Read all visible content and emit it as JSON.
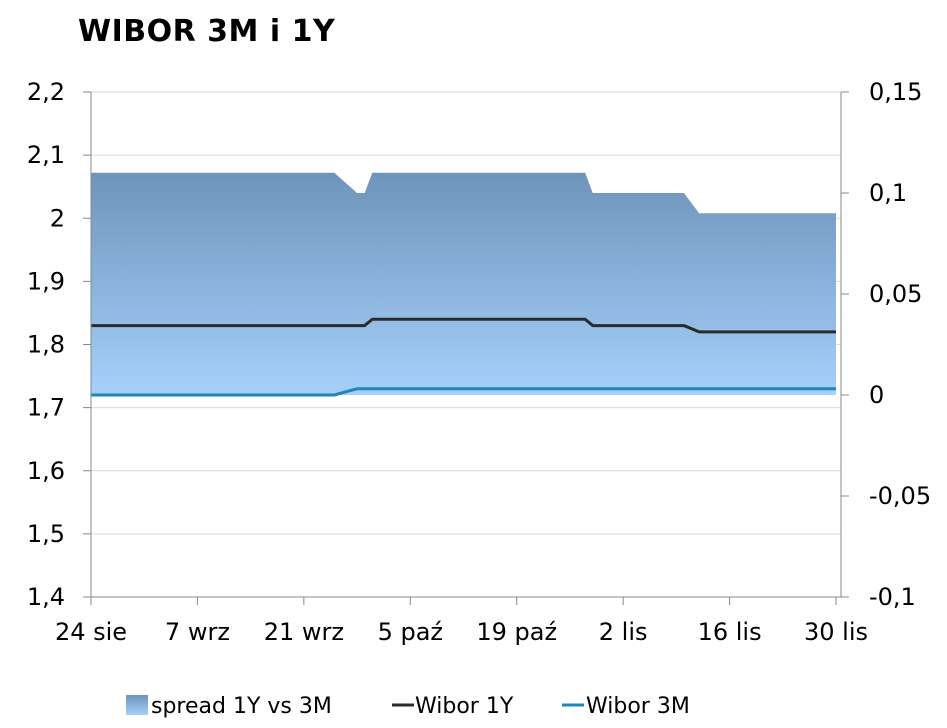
{
  "chart_data": {
    "type": "line",
    "title": "WIBOR 3M i 1Y",
    "xlabel": "",
    "ylabel": "",
    "ylim": [
      1.4,
      2.2
    ],
    "y2lim": [
      -0.1,
      0.15
    ],
    "y_ticks": [
      "2,2",
      "2,1",
      "2",
      "1,9",
      "1,8",
      "1,7",
      "1,6",
      "1,5",
      "1,4"
    ],
    "y2_ticks": [
      "0,15",
      "0,1",
      "0,05",
      "0",
      "-0,05",
      "-0,1"
    ],
    "x_tick_labels": [
      {
        "label": "24 sie",
        "day": 0
      },
      {
        "label": "7 wrz",
        "day": 14
      },
      {
        "label": "21 wrz",
        "day": 28
      },
      {
        "label": "5 paź",
        "day": 42
      },
      {
        "label": "19 paź",
        "day": 56
      },
      {
        "label": "2 lis",
        "day": 70
      },
      {
        "label": "16 lis",
        "day": 84
      },
      {
        "label": "30 lis",
        "day": 98
      }
    ],
    "grid": true,
    "legend_position": "bottom",
    "series": [
      {
        "name": "spread 1Y vs 3M",
        "kind": "area",
        "axis": "right",
        "color_top": "#6f94bb",
        "color_bottom": "#a6d0fa",
        "points": [
          {
            "day": 0,
            "value": 0.11
          },
          {
            "day": 32,
            "value": 0.11
          },
          {
            "day": 35,
            "value": 0.1
          },
          {
            "day": 36,
            "value": 0.1
          },
          {
            "day": 37,
            "value": 0.11
          },
          {
            "day": 65,
            "value": 0.11
          },
          {
            "day": 66,
            "value": 0.1
          },
          {
            "day": 78,
            "value": 0.1
          },
          {
            "day": 80,
            "value": 0.09
          },
          {
            "day": 98,
            "value": 0.09
          }
        ]
      },
      {
        "name": "Wibor 1Y",
        "kind": "line",
        "axis": "left",
        "color": "#2b2b2b",
        "points": [
          {
            "day": 0,
            "value": 1.83
          },
          {
            "day": 36,
            "value": 1.83
          },
          {
            "day": 37,
            "value": 1.84
          },
          {
            "day": 65,
            "value": 1.84
          },
          {
            "day": 66,
            "value": 1.83
          },
          {
            "day": 78,
            "value": 1.83
          },
          {
            "day": 80,
            "value": 1.82
          },
          {
            "day": 98,
            "value": 1.82
          }
        ]
      },
      {
        "name": "Wibor 3M",
        "kind": "line",
        "axis": "left",
        "color": "#1f86b8",
        "points": [
          {
            "day": 0,
            "value": 1.72
          },
          {
            "day": 32,
            "value": 1.72
          },
          {
            "day": 35,
            "value": 1.73
          },
          {
            "day": 98,
            "value": 1.73
          }
        ]
      }
    ]
  }
}
